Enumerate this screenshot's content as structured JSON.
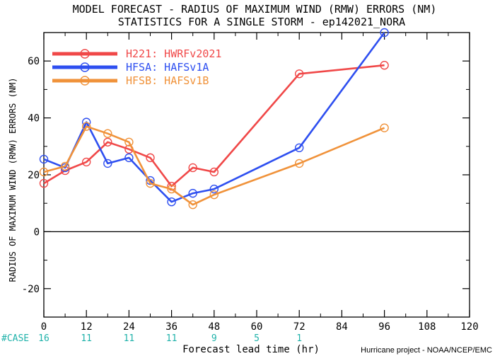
{
  "page_title": {
    "line1": "MODEL FORECAST - RADIUS OF MAXIMUM WIND (RMW) ERRORS (NM)",
    "line2": "STATISTICS FOR A SINGLE STORM - ep142021_NORA"
  },
  "credit": "Hurricane project - NOAA/NCEP/EMC",
  "colors": {
    "case_text": "#20b2aa"
  },
  "chart_data": {
    "type": "line",
    "title": "MODEL FORECAST - RADIUS OF MAXIMUM WIND (RMW) ERRORS (NM)",
    "subtitle": "STATISTICS FOR A SINGLE STORM - ep142021_NORA",
    "xlabel": "Forecast lead time (hr)",
    "ylabel": "RADIUS OF MAXIMUM WIND (RMW) ERRORS (NM)",
    "xlim": [
      0,
      120
    ],
    "ylim": [
      -30,
      70
    ],
    "xticks": [
      0,
      12,
      24,
      36,
      48,
      60,
      72,
      84,
      96,
      108,
      120
    ],
    "yticks": [
      -20,
      0,
      20,
      40,
      60
    ],
    "zero_line": true,
    "grid": false,
    "legend_position": "top-left",
    "series": [
      {
        "name": "H221: HWRFv2021",
        "color": "#f04848",
        "x": [
          0,
          6,
          12,
          18,
          24,
          30,
          36,
          42,
          48,
          72,
          96
        ],
        "y": [
          17,
          21.5,
          24.5,
          31.5,
          29,
          26,
          16,
          22.5,
          21,
          55.5,
          58.5
        ]
      },
      {
        "name": "HFSA: HAFSv1A",
        "color": "#2e4ff0",
        "x": [
          0,
          6,
          12,
          18,
          24,
          30,
          36,
          42,
          48,
          72,
          96
        ],
        "y": [
          25.5,
          22.5,
          38.5,
          24,
          26,
          18,
          10.5,
          13.5,
          15,
          29.5,
          70
        ]
      },
      {
        "name": "HFSB: HAFSv1B",
        "color": "#f0923a",
        "x": [
          0,
          6,
          12,
          18,
          24,
          30,
          36,
          42,
          48,
          72,
          96
        ],
        "y": [
          21,
          23,
          37,
          34.5,
          31.5,
          17,
          15,
          9.5,
          13,
          24,
          36.5
        ]
      }
    ],
    "case_counts": {
      "label": "#CASE",
      "x": [
        0,
        12,
        24,
        36,
        48,
        60,
        72
      ],
      "values": [
        "16",
        "11",
        "11",
        "11",
        "9",
        "5",
        "1"
      ]
    }
  }
}
